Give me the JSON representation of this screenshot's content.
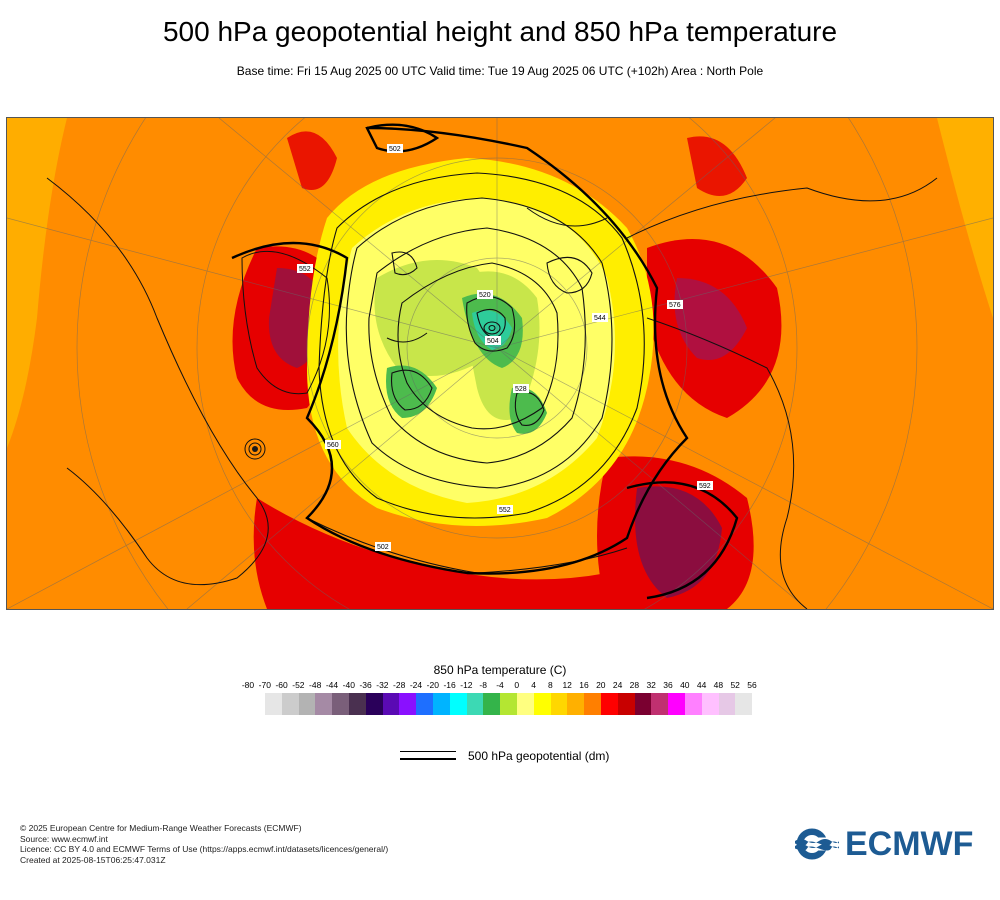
{
  "header": {
    "title": "500 hPa geopotential height and 850 hPa temperature",
    "subtitle": "Base time: Fri 15 Aug 2025 00 UTC Valid time: Tue 19 Aug 2025 06 UTC (+102h) Area : North Pole"
  },
  "map": {
    "contour_labels": [
      "502",
      "502",
      "552",
      "552",
      "592",
      "576",
      "560",
      "544",
      "528",
      "520",
      "504"
    ],
    "colors": {
      "background_orange": "#ff8c00",
      "warm_red": "#e60000",
      "hot_maroon": "#8b0d3f",
      "yellow": "#ffee00",
      "light_yellow": "#ffff66",
      "lime": "#c8e64a",
      "green": "#4dbb4d",
      "teal": "#2ecc9a"
    }
  },
  "legend": {
    "temperature_title": "850 hPa temperature (C)",
    "ticks": [
      "-80",
      "-70",
      "-60",
      "-52",
      "-48",
      "-44",
      "-40",
      "-36",
      "-32",
      "-28",
      "-24",
      "-20",
      "-16",
      "-12",
      "-8",
      "-4",
      "0",
      "4",
      "8",
      "12",
      "16",
      "20",
      "24",
      "28",
      "32",
      "36",
      "40",
      "44",
      "48",
      "52",
      "56"
    ],
    "swatches": [
      "#e6e6e6",
      "#cccccc",
      "#b3b3b3",
      "#a58aa5",
      "#7a5f7a",
      "#4a3050",
      "#2a005a",
      "#5a0ab4",
      "#8a10ff",
      "#1e6fff",
      "#00b4ff",
      "#00ffff",
      "#3cd9b4",
      "#34b44a",
      "#b4e632",
      "#ffff80",
      "#ffff00",
      "#ffd700",
      "#ffb000",
      "#ff7f00",
      "#ff0000",
      "#c80000",
      "#7a0030",
      "#c03070",
      "#ff00ff",
      "#ff80ff",
      "#ffc0ff",
      "#e6c8e6",
      "#e6e6e6"
    ],
    "geopotential_label": "500 hPa geopotential (dm)"
  },
  "footer": {
    "lines": [
      "© 2025 European Centre for Medium-Range Weather Forecasts (ECMWF)",
      "Source: www.ecmwf.int",
      "Licence: CC BY 4.0 and ECMWF Terms of Use (https://apps.ecmwf.int/datasets/licences/general/)",
      "Created at 2025-08-15T06:25:47.031Z"
    ]
  },
  "logo": {
    "text": "ECMWF",
    "color": "#1d5b93"
  }
}
